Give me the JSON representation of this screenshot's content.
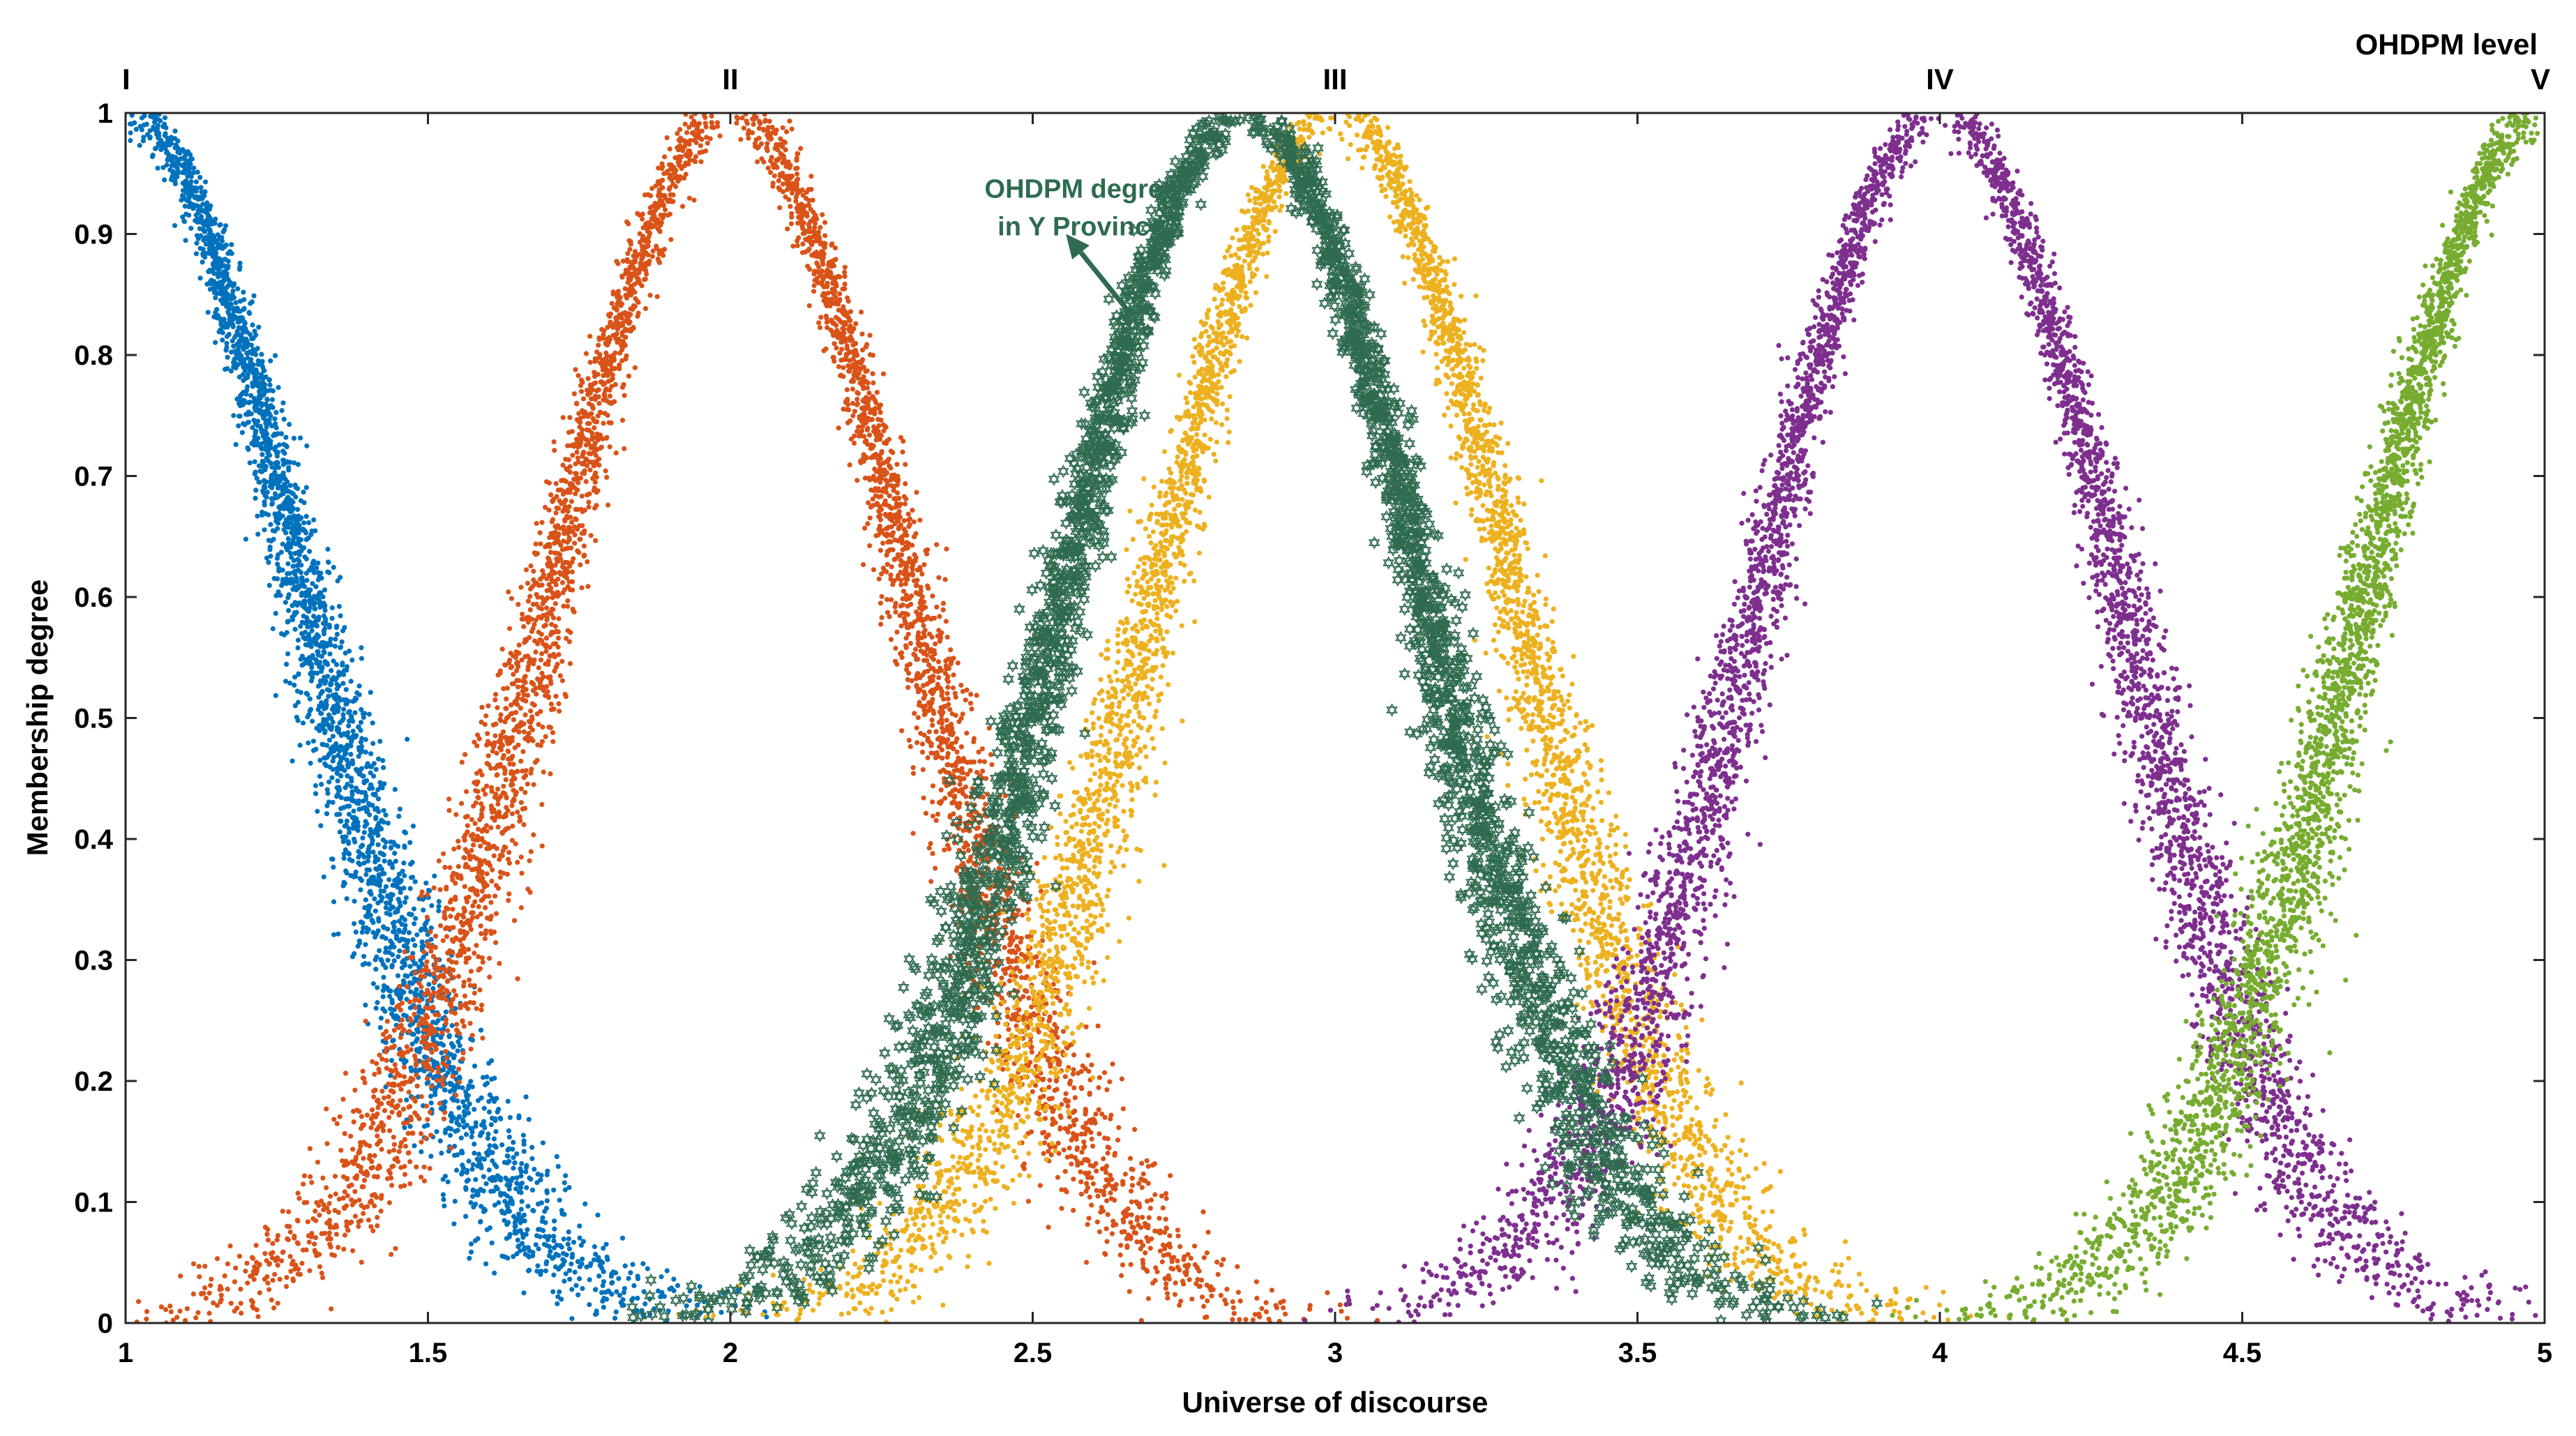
{
  "chart_data": {
    "type": "scatter",
    "title": "",
    "xlabel": "Universe of discourse",
    "ylabel": "Membership degree",
    "xlim": [
      1,
      5
    ],
    "ylim": [
      0,
      1
    ],
    "xticks": [
      1,
      1.5,
      2,
      2.5,
      3,
      3.5,
      4,
      4.5,
      5
    ],
    "xtick_labels": [
      "1",
      "1.5",
      "2",
      "2.5",
      "3",
      "3.5",
      "4",
      "4.5",
      "5"
    ],
    "yticks": [
      0,
      0.1,
      0.2,
      0.3,
      0.4,
      0.5,
      0.6,
      0.7,
      0.8,
      0.9,
      1
    ],
    "ytick_labels": [
      "0",
      "0.1",
      "0.2",
      "0.3",
      "0.4",
      "0.5",
      "0.6",
      "0.7",
      "0.8",
      "0.9",
      "1"
    ],
    "grid": false,
    "level_title": "OHDPM level",
    "levels": [
      {
        "label": "I",
        "x": 1
      },
      {
        "label": "II",
        "x": 2
      },
      {
        "label": "III",
        "x": 3
      },
      {
        "label": "IV",
        "x": 4
      },
      {
        "label": "V",
        "x": 5
      }
    ],
    "series": [
      {
        "name": "I",
        "color": "#0072BD",
        "marker": "dot",
        "center": 1,
        "spread": 0.42,
        "side": "right",
        "points_per_band": 9
      },
      {
        "name": "II",
        "color": "#D95319",
        "marker": "dot",
        "center": 2,
        "spread": 0.42,
        "side": "both",
        "points_per_band": 7
      },
      {
        "name": "III",
        "color": "#EDB120",
        "marker": "dot",
        "center": 3,
        "spread": 0.42,
        "side": "both",
        "points_per_band": 7
      },
      {
        "name": "IV",
        "color": "#7E2F8E",
        "marker": "dot",
        "center": 4,
        "spread": 0.42,
        "side": "both",
        "points_per_band": 7
      },
      {
        "name": "V",
        "color": "#77AC30",
        "marker": "dot",
        "center": 5,
        "spread": 0.42,
        "side": "left",
        "points_per_band": 9
      },
      {
        "name": "OHDPM degree in Y Province",
        "color": "#2E6B4F",
        "marker": "hexagram",
        "center": 2.85,
        "spread": 0.42,
        "side": "both",
        "points_per_band": 5
      }
    ],
    "annotation": {
      "lines": [
        "OHDPM degree",
        "in Y Province"
      ],
      "text_x": 2.58,
      "text_y": 0.93,
      "arrow_from": [
        2.66,
        0.835
      ],
      "arrow_to": [
        2.555,
        0.9
      ],
      "color": "#2E6B4F"
    }
  }
}
